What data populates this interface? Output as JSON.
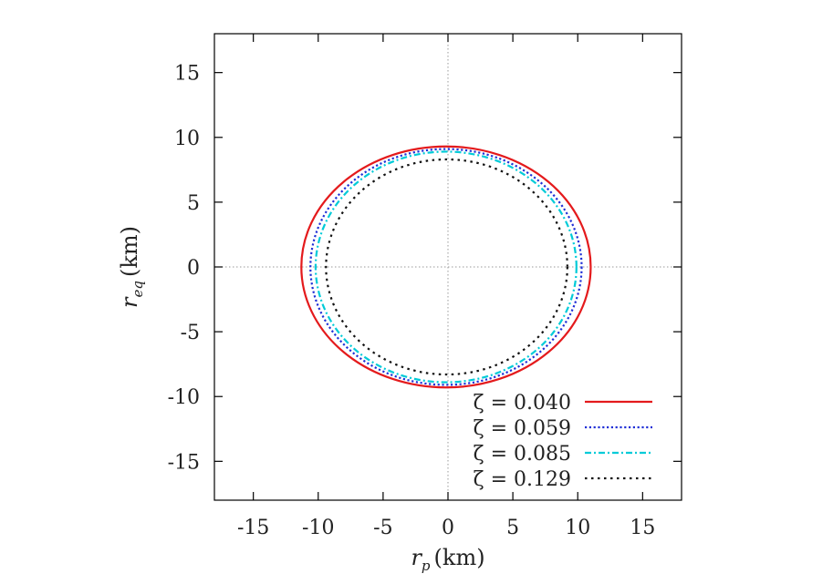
{
  "chart_data": {
    "type": "line",
    "xlabel_main": "r",
    "xlabel_sub": "p",
    "xlabel_unit": "(km)",
    "ylabel_main": "r",
    "ylabel_sub": "eq",
    "ylabel_unit": "(km)",
    "xlim": [
      -18,
      18
    ],
    "ylim": [
      -18,
      18
    ],
    "xticks": [
      -15,
      -10,
      -5,
      0,
      5,
      10,
      15
    ],
    "yticks": [
      15,
      10,
      5,
      0,
      -5,
      -10,
      -15
    ],
    "zero_lines": true,
    "legend_position": "bottom-right",
    "series": [
      {
        "name": "ζ = 0.040",
        "zeta": "0.040",
        "color": "#e41a1c",
        "dash": "solid",
        "x_left": -11.3,
        "x_right": 11.0,
        "y_top": 9.3,
        "y_bottom": -9.3
      },
      {
        "name": "ζ = 0.059",
        "zeta": "0.059",
        "color": "#1f2fd6",
        "dash": "dotted",
        "x_left": -10.6,
        "x_right": 10.3,
        "y_top": 9.1,
        "y_bottom": -9.1
      },
      {
        "name": "ζ = 0.085",
        "zeta": "0.085",
        "color": "#00cbd8",
        "dash": "dashdot",
        "x_left": -10.2,
        "x_right": 9.9,
        "y_top": 8.9,
        "y_bottom": -8.9
      },
      {
        "name": "ζ = 0.129",
        "zeta": "0.129",
        "color": "#111111",
        "dash": "dotted-sparse",
        "x_left": -9.4,
        "x_right": 9.2,
        "y_top": 8.3,
        "y_bottom": -8.3
      }
    ]
  }
}
